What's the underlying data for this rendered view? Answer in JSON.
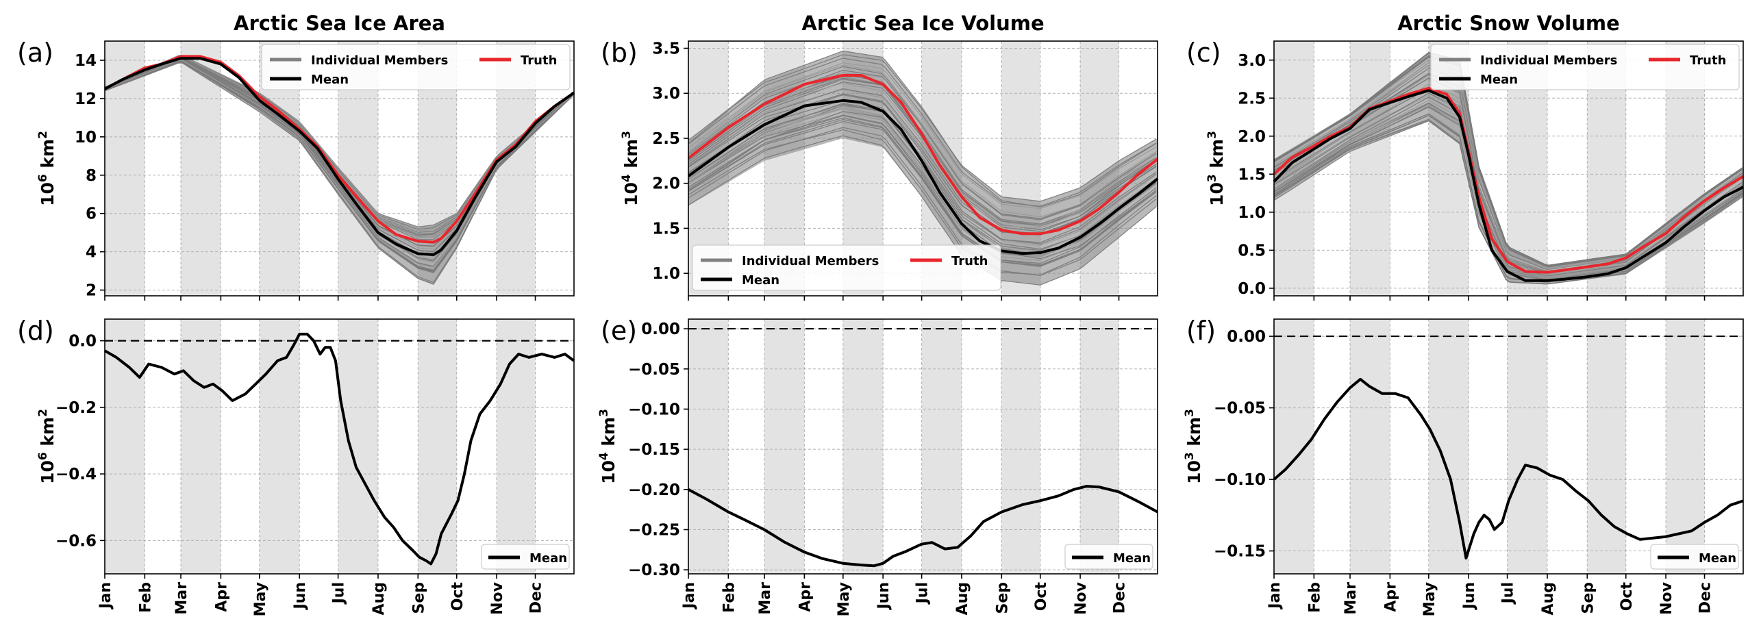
{
  "figure": {
    "colors": {
      "truth": "#e8262c",
      "mean": "#000000",
      "members": "#808080",
      "band": "#e3e3e3",
      "grid": "#b0b0b0"
    },
    "month_labels": [
      "Jan",
      "Feb",
      "Mar",
      "Apr",
      "May",
      "Jun",
      "Jul",
      "Aug",
      "Sep",
      "Oct",
      "Nov",
      "Dec"
    ]
  },
  "chart_data": [
    {
      "id": "a",
      "type": "line",
      "panel_label": "(a)",
      "title": "Arctic Sea Ice Area",
      "ylabel_base": "10",
      "ylabel_exp": "6",
      "ylabel_unit": "km",
      "ylabel_unit_exp": "2",
      "ylim": [
        1.7,
        15.0
      ],
      "yticks": [
        2,
        4,
        6,
        8,
        10,
        12,
        14
      ],
      "ytick_labels": [
        "2",
        "4",
        "6",
        "8",
        "10",
        "12",
        "14"
      ],
      "x_domain": "day_of_year",
      "grid": true,
      "legend": {
        "placement": "top-right",
        "entries": [
          {
            "label": "Individual Members",
            "kind": "members"
          },
          {
            "label": "Truth",
            "kind": "truth"
          },
          {
            "label": "Mean",
            "kind": "mean"
          }
        ]
      },
      "series": [
        {
          "name": "Truth",
          "kind": "truth",
          "x": [
            1,
            15,
            32,
            45,
            60,
            75,
            91,
            105,
            121,
            135,
            152,
            166,
            182,
            196,
            213,
            227,
            244,
            256,
            262,
            274,
            288,
            305,
            320,
            335,
            350,
            365
          ],
          "values": [
            12.5,
            13.0,
            13.6,
            13.8,
            14.2,
            14.2,
            13.9,
            13.2,
            12.1,
            11.4,
            10.4,
            9.5,
            8.0,
            6.9,
            5.6,
            4.9,
            4.55,
            4.5,
            4.7,
            5.6,
            7.0,
            8.8,
            9.6,
            10.8,
            11.6,
            12.3
          ]
        },
        {
          "name": "Mean",
          "kind": "mean",
          "x": [
            1,
            15,
            32,
            45,
            60,
            75,
            91,
            105,
            121,
            135,
            152,
            166,
            182,
            196,
            213,
            227,
            244,
            256,
            262,
            274,
            288,
            305,
            320,
            335,
            350,
            365
          ],
          "values": [
            12.5,
            13.0,
            13.5,
            13.8,
            14.1,
            14.1,
            13.8,
            13.1,
            11.9,
            11.2,
            10.3,
            9.4,
            7.8,
            6.5,
            5.0,
            4.4,
            3.9,
            3.85,
            4.1,
            5.1,
            6.8,
            8.7,
            9.5,
            10.7,
            11.6,
            12.3
          ]
        }
      ],
      "ensemble_spread": [
        {
          "x": 1,
          "low": 12.4,
          "high": 12.6
        },
        {
          "x": 60,
          "low": 13.9,
          "high": 14.3
        },
        {
          "x": 121,
          "low": 11.3,
          "high": 12.3
        },
        {
          "x": 152,
          "low": 9.8,
          "high": 10.8
        },
        {
          "x": 182,
          "low": 7.0,
          "high": 8.4
        },
        {
          "x": 213,
          "low": 4.2,
          "high": 6.0
        },
        {
          "x": 244,
          "low": 2.6,
          "high": 5.3
        },
        {
          "x": 256,
          "low": 2.3,
          "high": 5.4
        },
        {
          "x": 274,
          "low": 4.2,
          "high": 6.0
        },
        {
          "x": 305,
          "low": 8.3,
          "high": 9.0
        },
        {
          "x": 365,
          "low": 12.2,
          "high": 12.4
        }
      ]
    },
    {
      "id": "b",
      "type": "line",
      "panel_label": "(b)",
      "title": "Arctic Sea Ice Volume",
      "ylabel_base": "10",
      "ylabel_exp": "4",
      "ylabel_unit": "km",
      "ylabel_unit_exp": "3",
      "ylim": [
        0.75,
        3.58
      ],
      "yticks": [
        1.0,
        1.5,
        2.0,
        2.5,
        3.0,
        3.5
      ],
      "ytick_labels": [
        "1.0",
        "1.5",
        "2.0",
        "2.5",
        "3.0",
        "3.5"
      ],
      "x_domain": "day_of_year",
      "grid": true,
      "legend": {
        "placement": "bottom-left",
        "entries": [
          {
            "label": "Individual Members",
            "kind": "members"
          },
          {
            "label": "Truth",
            "kind": "truth"
          },
          {
            "label": "Mean",
            "kind": "mean"
          }
        ]
      },
      "series": [
        {
          "name": "Truth",
          "kind": "truth",
          "x": [
            1,
            32,
            60,
            91,
            121,
            135,
            152,
            166,
            182,
            196,
            213,
            227,
            244,
            260,
            274,
            288,
            305,
            320,
            335,
            350,
            365
          ],
          "values": [
            2.28,
            2.62,
            2.88,
            3.1,
            3.2,
            3.2,
            3.1,
            2.9,
            2.55,
            2.2,
            1.85,
            1.62,
            1.48,
            1.44,
            1.44,
            1.48,
            1.58,
            1.72,
            1.9,
            2.1,
            2.27
          ]
        },
        {
          "name": "Mean",
          "kind": "mean",
          "x": [
            1,
            32,
            60,
            91,
            121,
            135,
            152,
            166,
            182,
            196,
            213,
            227,
            244,
            260,
            274,
            288,
            305,
            320,
            335,
            350,
            365
          ],
          "values": [
            2.08,
            2.4,
            2.65,
            2.86,
            2.92,
            2.9,
            2.8,
            2.6,
            2.25,
            1.9,
            1.55,
            1.36,
            1.25,
            1.22,
            1.23,
            1.28,
            1.4,
            1.55,
            1.72,
            1.88,
            2.05
          ]
        }
      ],
      "ensemble_spread": [
        {
          "x": 1,
          "low": 1.75,
          "high": 2.48
        },
        {
          "x": 60,
          "low": 2.25,
          "high": 3.15
        },
        {
          "x": 121,
          "low": 2.5,
          "high": 3.47
        },
        {
          "x": 152,
          "low": 2.4,
          "high": 3.4
        },
        {
          "x": 182,
          "low": 1.85,
          "high": 2.85
        },
        {
          "x": 213,
          "low": 1.2,
          "high": 2.2
        },
        {
          "x": 244,
          "low": 0.92,
          "high": 1.85
        },
        {
          "x": 274,
          "low": 0.87,
          "high": 1.8
        },
        {
          "x": 305,
          "low": 1.05,
          "high": 1.95
        },
        {
          "x": 335,
          "low": 1.4,
          "high": 2.25
        },
        {
          "x": 365,
          "low": 1.75,
          "high": 2.5
        }
      ]
    },
    {
      "id": "c",
      "type": "line",
      "panel_label": "(c)",
      "title": "Arctic Snow Volume",
      "ylabel_base": "10",
      "ylabel_exp": "3",
      "ylabel_unit": "km",
      "ylabel_unit_exp": "3",
      "ylim": [
        -0.1,
        3.25
      ],
      "yticks": [
        0.0,
        0.5,
        1.0,
        1.5,
        2.0,
        2.5,
        3.0
      ],
      "ytick_labels": [
        "0.0",
        "0.5",
        "1.0",
        "1.5",
        "2.0",
        "2.5",
        "3.0"
      ],
      "x_domain": "day_of_year",
      "grid": true,
      "legend": {
        "placement": "top-right",
        "entries": [
          {
            "label": "Individual Members",
            "kind": "members"
          },
          {
            "label": "Truth",
            "kind": "truth"
          },
          {
            "label": "Mean",
            "kind": "mean"
          }
        ]
      },
      "series": [
        {
          "name": "Truth",
          "kind": "truth",
          "x": [
            1,
            15,
            32,
            45,
            60,
            75,
            91,
            105,
            121,
            135,
            145,
            152,
            160,
            170,
            182,
            196,
            213,
            227,
            244,
            260,
            274,
            288,
            305,
            320,
            335,
            350,
            365
          ],
          "values": [
            1.5,
            1.72,
            1.87,
            2.0,
            2.12,
            2.36,
            2.46,
            2.55,
            2.63,
            2.55,
            2.3,
            1.8,
            1.2,
            0.65,
            0.35,
            0.22,
            0.21,
            0.24,
            0.28,
            0.32,
            0.4,
            0.55,
            0.72,
            0.95,
            1.15,
            1.32,
            1.47
          ]
        },
        {
          "name": "Mean",
          "kind": "mean",
          "x": [
            1,
            15,
            32,
            45,
            60,
            75,
            91,
            105,
            121,
            135,
            145,
            152,
            160,
            170,
            182,
            196,
            213,
            227,
            244,
            260,
            274,
            288,
            305,
            320,
            335,
            350,
            365
          ],
          "values": [
            1.4,
            1.65,
            1.83,
            1.97,
            2.1,
            2.35,
            2.44,
            2.52,
            2.6,
            2.5,
            2.25,
            1.75,
            1.1,
            0.5,
            0.22,
            0.1,
            0.1,
            0.12,
            0.15,
            0.19,
            0.27,
            0.42,
            0.6,
            0.82,
            1.02,
            1.2,
            1.33
          ]
        }
      ],
      "ensemble_spread": [
        {
          "x": 1,
          "low": 1.15,
          "high": 1.7
        },
        {
          "x": 60,
          "low": 1.8,
          "high": 2.3
        },
        {
          "x": 121,
          "low": 2.2,
          "high": 3.1
        },
        {
          "x": 145,
          "low": 1.9,
          "high": 3.0
        },
        {
          "x": 160,
          "low": 0.8,
          "high": 1.6
        },
        {
          "x": 182,
          "low": 0.08,
          "high": 0.55
        },
        {
          "x": 213,
          "low": 0.05,
          "high": 0.3
        },
        {
          "x": 274,
          "low": 0.18,
          "high": 0.45
        },
        {
          "x": 335,
          "low": 0.85,
          "high": 1.25
        },
        {
          "x": 365,
          "low": 1.2,
          "high": 1.6
        }
      ]
    },
    {
      "id": "d",
      "type": "line",
      "panel_label": "(d)",
      "title": "",
      "ylabel_base": "10",
      "ylabel_exp": "6",
      "ylabel_unit": "km",
      "ylabel_unit_exp": "2",
      "ylim": [
        -0.7,
        0.065
      ],
      "yticks": [
        0.0,
        -0.2,
        -0.4,
        -0.6
      ],
      "ytick_labels": [
        "0.0",
        "−0.2",
        "−0.4",
        "−0.6"
      ],
      "x_domain": "day_of_year",
      "x_tick_labels": true,
      "grid": true,
      "zero_line": true,
      "legend": {
        "placement": "bottom-right",
        "entries": [
          {
            "label": "Mean",
            "kind": "mean"
          }
        ]
      },
      "series": [
        {
          "name": "Mean",
          "kind": "mean",
          "x": [
            1,
            10,
            20,
            28,
            35,
            45,
            55,
            62,
            70,
            78,
            85,
            92,
            100,
            110,
            118,
            126,
            135,
            142,
            148,
            152,
            158,
            163,
            168,
            172,
            176,
            180,
            184,
            190,
            196,
            203,
            210,
            218,
            225,
            232,
            240,
            245,
            250,
            254,
            258,
            262,
            266,
            270,
            275,
            280,
            285,
            292,
            300,
            308,
            315,
            322,
            330,
            340,
            350,
            358,
            365
          ],
          "values": [
            -0.03,
            -0.05,
            -0.08,
            -0.11,
            -0.07,
            -0.08,
            -0.1,
            -0.09,
            -0.12,
            -0.14,
            -0.13,
            -0.15,
            -0.18,
            -0.16,
            -0.13,
            -0.1,
            -0.06,
            -0.05,
            -0.01,
            0.02,
            0.02,
            0.0,
            -0.04,
            -0.02,
            -0.02,
            -0.06,
            -0.18,
            -0.3,
            -0.38,
            -0.43,
            -0.48,
            -0.53,
            -0.56,
            -0.6,
            -0.63,
            -0.65,
            -0.66,
            -0.67,
            -0.64,
            -0.58,
            -0.55,
            -0.52,
            -0.48,
            -0.4,
            -0.3,
            -0.22,
            -0.18,
            -0.13,
            -0.07,
            -0.04,
            -0.05,
            -0.04,
            -0.05,
            -0.04,
            -0.06
          ]
        }
      ]
    },
    {
      "id": "e",
      "type": "line",
      "panel_label": "(e)",
      "title": "",
      "ylabel_base": "10",
      "ylabel_exp": "4",
      "ylabel_unit": "km",
      "ylabel_unit_exp": "3",
      "ylim": [
        -0.305,
        0.012
      ],
      "yticks": [
        0.0,
        -0.05,
        -0.1,
        -0.15,
        -0.2,
        -0.25,
        -0.3
      ],
      "ytick_labels": [
        "0.00",
        "−0.05",
        "−0.10",
        "−0.15",
        "−0.20",
        "−0.25",
        "−0.30"
      ],
      "x_domain": "day_of_year",
      "x_tick_labels": true,
      "grid": true,
      "zero_line": true,
      "legend": {
        "placement": "bottom-right",
        "entries": [
          {
            "label": "Mean",
            "kind": "mean"
          }
        ]
      },
      "series": [
        {
          "name": "Mean",
          "kind": "mean",
          "x": [
            1,
            15,
            32,
            45,
            60,
            75,
            91,
            105,
            121,
            135,
            145,
            152,
            160,
            170,
            182,
            190,
            200,
            210,
            220,
            230,
            244,
            260,
            274,
            288,
            300,
            310,
            320,
            335,
            350,
            365
          ],
          "values": [
            -0.2,
            -0.212,
            -0.228,
            -0.238,
            -0.25,
            -0.265,
            -0.278,
            -0.286,
            -0.292,
            -0.294,
            -0.295,
            -0.292,
            -0.283,
            -0.277,
            -0.268,
            -0.266,
            -0.274,
            -0.272,
            -0.258,
            -0.24,
            -0.228,
            -0.219,
            -0.214,
            -0.208,
            -0.2,
            -0.196,
            -0.197,
            -0.203,
            -0.215,
            -0.228
          ]
        }
      ]
    },
    {
      "id": "f",
      "type": "line",
      "panel_label": "(f)",
      "title": "",
      "ylabel_base": "10",
      "ylabel_exp": "3",
      "ylabel_unit": "km",
      "ylabel_unit_exp": "3",
      "ylim": [
        -0.166,
        0.012
      ],
      "yticks": [
        0.0,
        -0.05,
        -0.1,
        -0.15
      ],
      "ytick_labels": [
        "0.00",
        "−0.05",
        "−0.10",
        "−0.15"
      ],
      "x_domain": "day_of_year",
      "x_tick_labels": true,
      "grid": true,
      "zero_line": true,
      "legend": {
        "placement": "bottom-right",
        "entries": [
          {
            "label": "Mean",
            "kind": "mean"
          }
        ]
      },
      "series": [
        {
          "name": "Mean",
          "kind": "mean",
          "x": [
            1,
            10,
            20,
            30,
            40,
            50,
            60,
            68,
            75,
            85,
            95,
            105,
            115,
            122,
            130,
            138,
            145,
            150,
            156,
            160,
            164,
            168,
            172,
            178,
            183,
            190,
            196,
            205,
            215,
            225,
            235,
            245,
            255,
            265,
            275,
            285,
            295,
            305,
            315,
            325,
            335,
            345,
            355,
            365
          ],
          "values": [
            -0.1,
            -0.093,
            -0.083,
            -0.072,
            -0.058,
            -0.046,
            -0.036,
            -0.03,
            -0.035,
            -0.04,
            -0.04,
            -0.043,
            -0.055,
            -0.065,
            -0.08,
            -0.1,
            -0.13,
            -0.155,
            -0.138,
            -0.13,
            -0.125,
            -0.128,
            -0.135,
            -0.13,
            -0.115,
            -0.1,
            -0.09,
            -0.092,
            -0.097,
            -0.1,
            -0.108,
            -0.115,
            -0.125,
            -0.133,
            -0.138,
            -0.142,
            -0.141,
            -0.14,
            -0.138,
            -0.136,
            -0.13,
            -0.125,
            -0.118,
            -0.115
          ]
        }
      ]
    }
  ]
}
